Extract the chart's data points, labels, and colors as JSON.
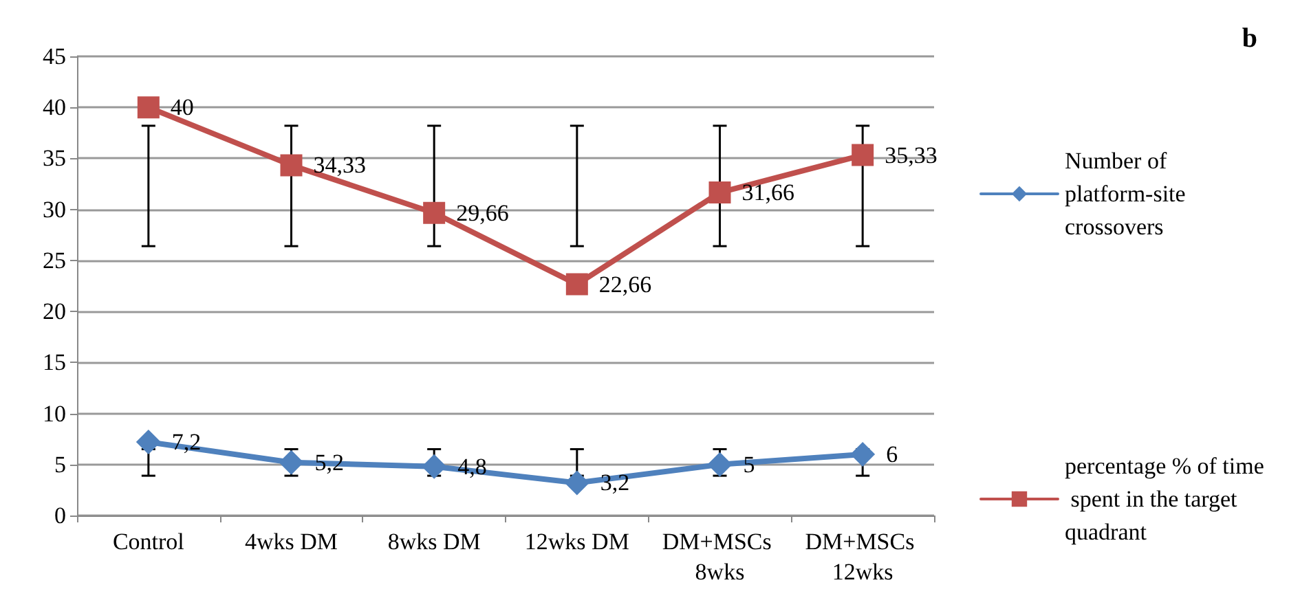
{
  "chart_data": {
    "type": "line",
    "categories": [
      "Control",
      "4wks DM",
      "8wks DM",
      "12wks DM",
      "DM+MSCs 8wks",
      "DM+MSCs 12wks"
    ],
    "series": [
      {
        "name": "Number of platform-site crossovers",
        "color": "#4f81bd",
        "marker": "diamond",
        "values": [
          7.2,
          5.2,
          4.8,
          3.2,
          5,
          6
        ],
        "value_labels": [
          "7,2",
          "5,2",
          "4,8",
          "3,2",
          "5",
          "6"
        ],
        "errors": [
          [
            3.9,
            6.5
          ],
          [
            3.9,
            6.5
          ],
          [
            3.9,
            6.5
          ],
          [
            3.9,
            6.5
          ],
          [
            3.9,
            6.5
          ],
          [
            3.9,
            6.5
          ]
        ]
      },
      {
        "name": "percentage % of time spent in the target quadrant",
        "color": "#c0504d",
        "marker": "square",
        "values": [
          40,
          34.33,
          29.66,
          22.66,
          31.66,
          35.33
        ],
        "value_labels": [
          "40",
          "34,33",
          "29,66",
          "22,66",
          "31,66",
          "35,33"
        ],
        "errors": [
          [
            26.4,
            38.2
          ],
          [
            26.4,
            38.2
          ],
          [
            26.4,
            38.2
          ],
          [
            26.4,
            38.2
          ],
          [
            26.4,
            38.2
          ],
          [
            26.4,
            38.2
          ]
        ]
      }
    ],
    "ylim": [
      0,
      45
    ],
    "yticks": [
      0,
      5,
      10,
      15,
      20,
      25,
      30,
      35,
      40,
      45
    ],
    "grid": "y",
    "legend": "right",
    "annotations": [
      "b"
    ]
  }
}
